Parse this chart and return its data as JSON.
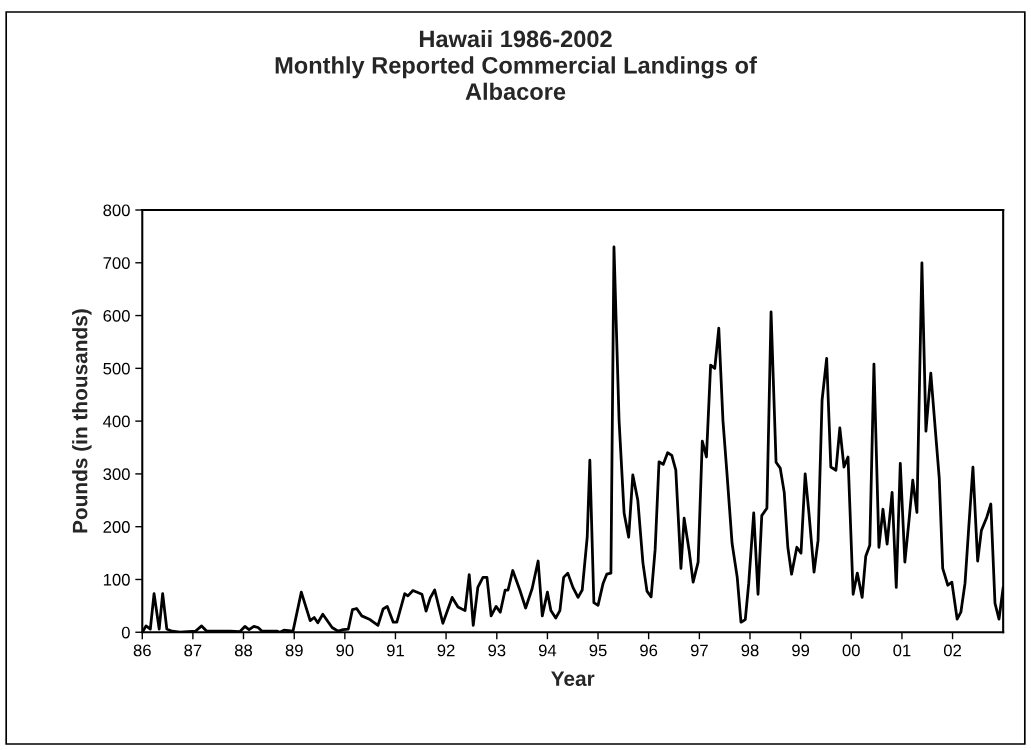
{
  "chart_data": {
    "type": "line",
    "title": "Hawaii 1986-2002\nMonthly Reported Commercial Landings of\nAlbacore",
    "xlabel": "Year",
    "ylabel": "Pounds (in thousands)",
    "x": [
      "1986-01-01",
      "1986-01-08",
      "1986-01-28",
      "1986-02-28",
      "1986-03-27",
      "1986-05-03",
      "1986-05-28",
      "1986-06-27",
      "1986-08-03",
      "1986-10-01",
      "1987-01-19",
      "1987-03-05",
      "1987-04-11",
      "1987-09-27",
      "1987-12-05",
      "1988-01-11",
      "1988-02-10",
      "1988-03-16",
      "1988-04-15",
      "1988-05-14",
      "1988-09-02",
      "1988-09-20",
      "1988-10-19",
      "1988-12-23",
      "1989-02-21",
      "1989-04-26",
      "1989-05-25",
      "1989-06-20",
      "1989-07-26",
      "1989-10-01",
      "1989-11-14",
      "1989-12-20",
      "1990-01-26",
      "1990-02-25",
      "1990-03-27",
      "1990-05-03",
      "1990-07-01",
      "1990-08-28",
      "1990-10-04",
      "1990-11-03",
      "1990-12-16",
      "1991-01-11",
      "1991-03-09",
      "1991-04-01",
      "1991-05-07",
      "1991-07-11",
      "1991-08-10",
      "1991-09-09",
      "1991-10-11",
      "1991-12-09",
      "1992-02-14",
      "1992-03-27",
      "1992-05-17",
      "1992-06-16",
      "1992-07-15",
      "1992-08-17",
      "1992-09-23",
      "1992-10-22",
      "1992-11-21",
      "1992-12-27",
      "1993-01-26",
      "1993-03-02",
      "1993-03-23",
      "1993-04-26",
      "1993-06-16",
      "1993-07-28",
      "1993-09-13",
      "1993-10-26",
      "1993-11-25",
      "1994-01-01",
      "1994-01-26",
      "1994-03-02",
      "1994-04-01",
      "1994-04-28",
      "1994-05-28",
      "1994-07-04",
      "1994-08-10",
      "1994-09-09",
      "1994-10-15",
      "1994-11-03",
      "1994-12-02",
      "1995-01-01",
      "1995-02-07",
      "1995-03-05",
      "1995-04-04",
      "1995-04-26",
      "1995-06-02",
      "1995-07-08",
      "1995-08-10",
      "1995-09-09",
      "1995-10-15",
      "1995-11-21",
      "1995-12-20",
      "1996-01-19",
      "1996-02-17",
      "1996-03-16",
      "1996-04-15",
      "1996-05-17",
      "1996-06-16",
      "1996-07-15",
      "1996-08-21",
      "1996-09-13",
      "1996-10-19",
      "1996-11-17",
      "1996-12-23",
      "1997-01-22",
      "1997-02-21",
      "1997-03-23",
      "1997-04-22",
      "1997-05-21",
      "1997-06-20",
      "1997-07-19",
      "1997-08-25",
      "1997-10-01",
      "1997-10-28",
      "1997-11-28",
      "1997-12-23",
      "1998-01-28",
      "1998-02-28",
      "1998-03-27",
      "1998-05-03",
      "1998-06-02",
      "1998-07-08",
      "1998-08-07",
      "1998-09-05",
      "1998-10-01",
      "1998-10-28",
      "1998-12-05",
      "1999-01-04",
      "1999-02-03",
      "1999-03-02",
      "1999-04-08",
      "1999-05-07",
      "1999-06-05",
      "1999-07-08",
      "1999-08-07",
      "1999-09-13",
      "1999-10-11",
      "1999-11-10",
      "1999-12-09",
      "2000-01-15",
      "2000-02-14",
      "2000-03-20",
      "2000-04-15",
      "2000-05-14",
      "2000-06-13",
      "2000-07-19",
      "2000-08-17",
      "2000-09-16",
      "2000-10-22",
      "2000-11-21",
      "2000-12-20",
      "2001-01-22",
      "2001-02-21",
      "2001-03-20",
      "2001-04-19",
      "2001-05-25",
      "2001-06-23",
      "2001-07-28",
      "2001-08-28",
      "2001-09-27",
      "2001-10-22",
      "2001-11-28",
      "2001-12-27",
      "2002-02-03",
      "2002-03-02",
      "2002-04-01",
      "2002-04-28",
      "2002-05-28",
      "2002-07-01",
      "2002-07-28",
      "2002-09-05",
      "2002-10-04",
      "2002-11-03",
      "2002-12-02",
      "2003-01-01"
    ],
    "series": [
      {
        "color": "#000000",
        "values": [
          0,
          3,
          12,
          6,
          73,
          6,
          73,
          6,
          2,
          0,
          2,
          12,
          2,
          2,
          1,
          11,
          5,
          11,
          9,
          2,
          2,
          0,
          4,
          2,
          76,
          22,
          28,
          18,
          34,
          9,
          2,
          5,
          6,
          43,
          45,
          31,
          24,
          13,
          44,
          49,
          19,
          19,
          73,
          69,
          79,
          72,
          40,
          65,
          80,
          17,
          66,
          48,
          41,
          109,
          13,
          85,
          104,
          104,
          31,
          49,
          38,
          80,
          80,
          117,
          80,
          46,
          83,
          135,
          31,
          76,
          41,
          27,
          41,
          104,
          112,
          85,
          66,
          80,
          180,
          326,
          56,
          51,
          93,
          110,
          112,
          730,
          400,
          226,
          180,
          298,
          250,
          131,
          78,
          67,
          157,
          323,
          318,
          340,
          335,
          307,
          121,
          216,
          155,
          95,
          133,
          362,
          332,
          506,
          500,
          576,
          401,
          301,
          168,
          104,
          19,
          24,
          93,
          226,
          72,
          221,
          235,
          607,
          322,
          311,
          265,
          161,
          110,
          161,
          150,
          300,
          226,
          114,
          174,
          440,
          519,
          313,
          307,
          387,
          313,
          332,
          72,
          112,
          66,
          144,
          165,
          508,
          161,
          233,
          167,
          265,
          85,
          320,
          133,
          212,
          288,
          227,
          700,
          381,
          491,
          389,
          292,
          121,
          89,
          95,
          25,
          38,
          93,
          199,
          313,
          135,
          193,
          218,
          243,
          55,
          25,
          85
        ]
      }
    ],
    "xlim": [
      "1986-01-01",
      "2003-01-01"
    ],
    "ylim": [
      0,
      800
    ],
    "xticks": [
      {
        "value": "1986",
        "label": "86"
      },
      {
        "value": "1987",
        "label": "87"
      },
      {
        "value": "1988",
        "label": "88"
      },
      {
        "value": "1989",
        "label": "89"
      },
      {
        "value": "1990",
        "label": "90"
      },
      {
        "value": "1991",
        "label": "91"
      },
      {
        "value": "1992",
        "label": "92"
      },
      {
        "value": "1993",
        "label": "93"
      },
      {
        "value": "1994",
        "label": "94"
      },
      {
        "value": "1995",
        "label": "95"
      },
      {
        "value": "1996",
        "label": "96"
      },
      {
        "value": "1997",
        "label": "97"
      },
      {
        "value": "1998",
        "label": "98"
      },
      {
        "value": "1999",
        "label": "99"
      },
      {
        "value": "2000",
        "label": "00"
      },
      {
        "value": "2001",
        "label": "01"
      },
      {
        "value": "2002",
        "label": "02"
      }
    ],
    "yticks": [
      0,
      100,
      200,
      300,
      400,
      500,
      600,
      700,
      800
    ],
    "marker": "none",
    "line_style": "solid"
  }
}
